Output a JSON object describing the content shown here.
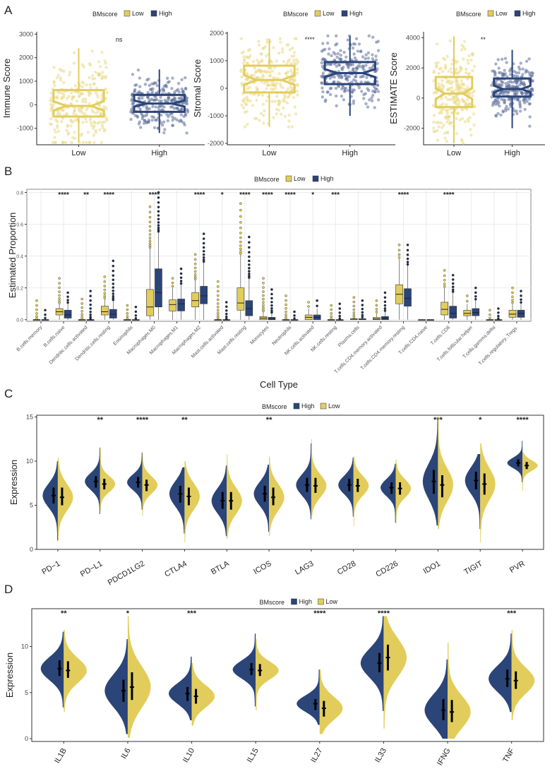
{
  "panel_labels": [
    "A",
    "B",
    "C",
    "D"
  ],
  "legend": {
    "title": "BMscore",
    "low": "Low",
    "high": "High"
  },
  "colors": {
    "low": "#e2cd5c",
    "high": "#2b4578",
    "low_point": "#ead986",
    "high_point": "#5e6f9a",
    "grid": "#ebebeb"
  },
  "chart_data": [
    {
      "id": "A1",
      "type": "box",
      "ylabel": "Immune Score",
      "categories": [
        "Low",
        "High"
      ],
      "yticks": [
        -1000,
        0,
        1000,
        2000,
        3000
      ],
      "ylim": [
        -1700,
        3100
      ],
      "significance": "ns",
      "boxes": [
        {
          "group": "Low",
          "min": -1600,
          "q1": -500,
          "median": -50,
          "q3": 620,
          "max": 2400
        },
        {
          "group": "High",
          "min": -1200,
          "q1": -300,
          "median": 50,
          "q3": 420,
          "max": 1500
        }
      ]
    },
    {
      "id": "A2",
      "type": "box",
      "ylabel": "Stromal Score",
      "categories": [
        "Low",
        "High"
      ],
      "yticks": [
        -2000,
        -1000,
        0,
        1000,
        2000
      ],
      "ylim": [
        -2050,
        2050
      ],
      "significance": "****",
      "boxes": [
        {
          "group": "Low",
          "min": -1400,
          "q1": -150,
          "median": 300,
          "q3": 820,
          "max": 1800
        },
        {
          "group": "High",
          "min": -1000,
          "q1": 150,
          "median": 550,
          "q3": 950,
          "max": 1900
        }
      ]
    },
    {
      "id": "A3",
      "type": "box",
      "ylabel": "ESTIMATE Score",
      "categories": [
        "Low",
        "High"
      ],
      "yticks": [
        -2000,
        0,
        2000,
        4000
      ],
      "ylim": [
        -3100,
        4400
      ],
      "significance": "**",
      "boxes": [
        {
          "group": "Low",
          "min": -3000,
          "q1": -600,
          "median": 300,
          "q3": 1400,
          "max": 4100
        },
        {
          "group": "High",
          "min": -2000,
          "q1": 100,
          "median": 600,
          "q3": 1300,
          "max": 3200
        }
      ]
    },
    {
      "id": "B",
      "type": "box",
      "xlabel": "Cell Type",
      "ylabel": "Estimated Proportion",
      "yticks": [
        0.0,
        0.2,
        0.4,
        0.6,
        0.8
      ],
      "ytick_labels": [
        "0.0",
        "0.2",
        "0.4",
        "0.6",
        "0.8"
      ],
      "ylim": [
        -0.01,
        0.82
      ],
      "grid": true,
      "categories": [
        "B.cells.memory",
        "B.cells.naive",
        "Dendritic.cells.activated",
        "Dendritic.cells.resting",
        "Eosinophils",
        "Macrophages.M0",
        "Macrophages.M1",
        "Macrophages.M2",
        "Mast.cells.activated",
        "Mast.cells.resting",
        "Monocytes",
        "Neutrophils",
        "NK.cells.activated",
        "NK.cells.resting",
        "Plasma.cells",
        "T.cells.CD4.memory.activated",
        "T.cells.CD4.memory.resting",
        "T.cells.CD4.naive",
        "T.cells.CD8",
        "T.cells.follicular.helper",
        "T.cells.gamma.delta",
        "T.cells.regulatory..Tregs."
      ],
      "significance": [
        "",
        "****",
        "**",
        "****",
        "",
        "****",
        "",
        "****",
        "*",
        "****",
        "****",
        "****",
        "*",
        "***",
        "",
        "",
        "****",
        "",
        "****",
        "",
        "",
        ""
      ],
      "low": [
        [
          0,
          0,
          0,
          0,
          0.12
        ],
        [
          0.03,
          0.05,
          0.07,
          0.1,
          0.26
        ],
        [
          0,
          0,
          0,
          0,
          0.13
        ],
        [
          0.03,
          0.05,
          0.085,
          0.13,
          0.27
        ],
        [
          0,
          0,
          0,
          0,
          0.09
        ],
        [
          0.025,
          0.08,
          0.19,
          0.45,
          0.71
        ],
        [
          0.055,
          0.095,
          0.125,
          0.2,
          0.26
        ],
        [
          0.08,
          0.12,
          0.17,
          0.25,
          0.41
        ],
        [
          0,
          0,
          0,
          0,
          0.24
        ],
        [
          0.06,
          0.105,
          0.2,
          0.41,
          0.73
        ],
        [
          0,
          0.01,
          0.02,
          0.05,
          0.26
        ],
        [
          0,
          0,
          0,
          0,
          0.15
        ],
        [
          0,
          0.015,
          0.03,
          0.07,
          0.11
        ],
        [
          0,
          0,
          0,
          0,
          0.09
        ],
        [
          0,
          0.005,
          0.005,
          0.01,
          0.14
        ],
        [
          0,
          0.005,
          0.015,
          0.04,
          0.12
        ],
        [
          0.1,
          0.16,
          0.22,
          0.38,
          0.47
        ],
        [
          0,
          0,
          0,
          0,
          0
        ],
        [
          0.03,
          0.065,
          0.11,
          0.2,
          0.31
        ],
        [
          0.025,
          0.04,
          0.06,
          0.1,
          0.15
        ],
        [
          0,
          0,
          0,
          0,
          0.06
        ],
        [
          0.015,
          0.035,
          0.06,
          0.1,
          0.2
        ]
      ],
      "high": [
        [
          0,
          0,
          0,
          0,
          0.06
        ],
        [
          0.01,
          0.03,
          0.06,
          0.1,
          0.17
        ],
        [
          0,
          0,
          0,
          0,
          0.18
        ],
        [
          0.01,
          0.035,
          0.065,
          0.12,
          0.37
        ],
        [
          0,
          0,
          0,
          0,
          0.08
        ],
        [
          0.08,
          0.17,
          0.32,
          0.55,
          0.8
        ],
        [
          0.055,
          0.1,
          0.13,
          0.22,
          0.32
        ],
        [
          0.1,
          0.15,
          0.21,
          0.36,
          0.54
        ],
        [
          0,
          0,
          0,
          0,
          0.11
        ],
        [
          0.025,
          0.07,
          0.12,
          0.26,
          0.52
        ],
        [
          0,
          0.005,
          0.015,
          0.04,
          0.19
        ],
        [
          0,
          0,
          0,
          0,
          0.05
        ],
        [
          0,
          0.015,
          0.03,
          0.07,
          0.12
        ],
        [
          0,
          0,
          0,
          0,
          0.1
        ],
        [
          0,
          0.005,
          0.005,
          0.01,
          0.12
        ],
        [
          0,
          0.01,
          0.02,
          0.05,
          0.17
        ],
        [
          0.085,
          0.135,
          0.195,
          0.34,
          0.47
        ],
        [
          0,
          0,
          0,
          0,
          0.005
        ],
        [
          0.01,
          0.04,
          0.085,
          0.17,
          0.28
        ],
        [
          0.025,
          0.045,
          0.07,
          0.12,
          0.2
        ],
        [
          0,
          0,
          0,
          0,
          0.07
        ],
        [
          0.015,
          0.04,
          0.06,
          0.1,
          0.18
        ]
      ]
    },
    {
      "id": "C",
      "type": "violin",
      "ylabel": "Expression",
      "yticks": [
        0,
        5,
        10,
        15
      ],
      "ylim": [
        0,
        15.2
      ],
      "categories": [
        "PD−1",
        "PD−L1",
        "PDCD1LG2",
        "CTLA4",
        "BTLA",
        "ICOS",
        "LAG3",
        "CD28",
        "CD226",
        "IDO1",
        "TIGIT",
        "PVR"
      ],
      "significance": [
        "",
        "**",
        "****",
        "**",
        "",
        "**",
        "",
        "",
        "",
        "***",
        "*",
        "****"
      ],
      "high": [
        [
          1,
          10,
          6.1,
          5.2,
          7
        ],
        [
          4,
          11.5,
          7.7,
          7,
          8.3
        ],
        [
          4.5,
          11,
          7.6,
          7,
          8.2
        ],
        [
          1.8,
          9.3,
          6.3,
          5.3,
          7.2
        ],
        [
          1.5,
          9.5,
          5.5,
          4.6,
          6.5
        ],
        [
          2,
          9.6,
          6.3,
          5.4,
          7.2
        ],
        [
          3.4,
          12,
          7.3,
          6.5,
          8.1
        ],
        [
          3.7,
          10.4,
          7.3,
          6.6,
          8
        ],
        [
          3,
          9.7,
          7,
          6.3,
          7.6
        ],
        [
          2.7,
          14.8,
          7.7,
          6.3,
          9
        ],
        [
          2.3,
          10.8,
          7.8,
          6.8,
          8.8
        ],
        [
          7.6,
          12.3,
          9.8,
          9.4,
          10.2
        ]
      ],
      "low": [
        [
          1,
          10.4,
          5.9,
          5,
          7
        ],
        [
          4.3,
          11.6,
          7.4,
          6.8,
          8
        ],
        [
          3.8,
          10.8,
          7.3,
          6.6,
          7.9
        ],
        [
          0.8,
          10,
          6,
          5,
          7
        ],
        [
          1.2,
          10.8,
          5.5,
          4.5,
          6.5
        ],
        [
          1.5,
          10.5,
          5.9,
          5,
          7
        ],
        [
          3.8,
          12.5,
          7.2,
          6.4,
          8.1
        ],
        [
          2.6,
          10.5,
          7.2,
          6.5,
          8
        ],
        [
          3,
          10.2,
          6.9,
          6.2,
          7.6
        ],
        [
          2.3,
          15,
          7.3,
          5.9,
          8.4
        ],
        [
          0.8,
          12,
          7.4,
          6.2,
          8.6
        ],
        [
          6.6,
          11,
          9.5,
          9.1,
          9.9
        ]
      ]
    },
    {
      "id": "D",
      "type": "violin",
      "ylabel": "Expression",
      "yticks": [
        0,
        5,
        10
      ],
      "ylim": [
        -0.3,
        14.1
      ],
      "categories": [
        "IL1B",
        "IL6",
        "IL10",
        "IL15",
        "IL27",
        "IL33",
        "IFNG",
        "TNF"
      ],
      "significance": [
        "**",
        "*",
        "***",
        "",
        "****",
        "****",
        "",
        "***"
      ],
      "high": [
        [
          3.4,
          11.6,
          7.6,
          6.8,
          8.5
        ],
        [
          0.5,
          10.8,
          5.2,
          4,
          6.4
        ],
        [
          2,
          8.9,
          4.9,
          4.1,
          5.6
        ],
        [
          3.5,
          11.4,
          7.5,
          6.9,
          8.2
        ],
        [
          1.5,
          7.5,
          3.8,
          3.1,
          4.3
        ],
        [
          3,
          13.3,
          8.2,
          7.2,
          9.3
        ],
        [
          0,
          8.6,
          3.1,
          2,
          4.3
        ],
        [
          2.9,
          11.4,
          6.5,
          5.6,
          7.5
        ]
      ],
      "low": [
        [
          2.9,
          11.8,
          7.4,
          6.6,
          8.4
        ],
        [
          0.1,
          13.3,
          5.6,
          4.2,
          7.2
        ],
        [
          1.4,
          8.2,
          4.6,
          3.8,
          5.4
        ],
        [
          3.1,
          10.8,
          7.4,
          6.8,
          8.1
        ],
        [
          0.5,
          7.5,
          3.3,
          2.4,
          4.1
        ],
        [
          1.1,
          13.3,
          8.8,
          7.4,
          10.2
        ],
        [
          0,
          10.4,
          2.9,
          1.8,
          4.2
        ],
        [
          2,
          11.8,
          6.3,
          5.4,
          7.3
        ]
      ]
    }
  ]
}
